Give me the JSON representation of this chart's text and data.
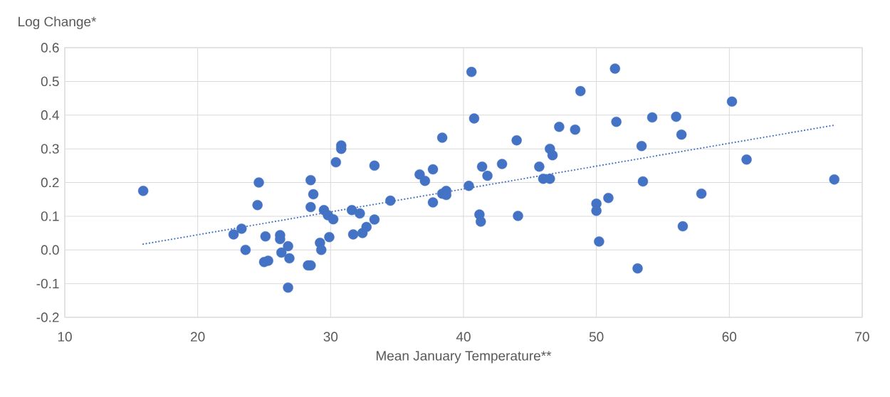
{
  "chart_data": {
    "type": "scatter",
    "xlabel": "Mean January Temperature**",
    "ylabel": "Log Change*",
    "xlim": [
      10,
      70
    ],
    "xticks": [
      10,
      20,
      30,
      40,
      50,
      60,
      70
    ],
    "ylim": [
      -0.2,
      0.6
    ],
    "yticks": [
      -0.2,
      -0.1,
      {
        "value": 0,
        "label": "0.0"
      },
      0.1,
      0.2,
      0.3,
      0.4,
      0.5,
      0.6
    ],
    "grid": true,
    "marker": "circle",
    "x": [
      15.9,
      22.7,
      23.3,
      23.6,
      24.6,
      24.5,
      25.1,
      25.0,
      25.3,
      26.2,
      26.2,
      26.3,
      26.8,
      26.9,
      26.8,
      28.3,
      28.5,
      28.5,
      28.5,
      28.7,
      29.2,
      29.3,
      29.5,
      29.8,
      30.2,
      29.9,
      30.4,
      30.8,
      30.8,
      31.6,
      32.2,
      31.7,
      32.4,
      32.7,
      33.3,
      33.3,
      34.5,
      36.7,
      37.1,
      37.7,
      37.7,
      38.4,
      38.4,
      38.7,
      38.7,
      40.4,
      40.6,
      40.8,
      41.2,
      41.3,
      41.4,
      41.8,
      42.9,
      44.0,
      44.1,
      45.7,
      46.0,
      46.5,
      46.5,
      46.7,
      47.2,
      48.4,
      48.8,
      50.0,
      50.0,
      50.2,
      50.9,
      51.4,
      51.5,
      53.1,
      53.4,
      53.5,
      54.2,
      56.0,
      56.4,
      56.5,
      57.9,
      60.2,
      61.3,
      67.9
    ],
    "series": [
      {
        "type": "scatter",
        "color": "#4472c4",
        "values": [
          0.175,
          0.046,
          0.063,
          0.0,
          0.2,
          0.133,
          0.04,
          -0.036,
          -0.032,
          0.044,
          0.032,
          -0.008,
          0.011,
          -0.025,
          -0.112,
          -0.046,
          -0.046,
          0.207,
          0.127,
          0.165,
          0.021,
          0.0,
          0.118,
          0.103,
          0.091,
          0.038,
          0.26,
          0.31,
          0.3,
          0.118,
          0.108,
          0.046,
          0.05,
          0.068,
          0.09,
          0.25,
          0.146,
          0.224,
          0.205,
          0.239,
          0.141,
          0.333,
          0.167,
          0.175,
          0.163,
          0.19,
          0.528,
          0.39,
          0.105,
          0.084,
          0.247,
          0.22,
          0.255,
          0.325,
          0.101,
          0.247,
          0.211,
          0.211,
          0.3,
          0.281,
          0.365,
          0.357,
          0.471,
          0.137,
          0.116,
          0.025,
          0.154,
          0.538,
          0.38,
          -0.055,
          0.308,
          0.203,
          0.393,
          0.395,
          0.342,
          0.07,
          0.167,
          0.44,
          0.268,
          0.209
        ]
      },
      {
        "type": "line",
        "color": "#4472c4",
        "x": [
          15.9,
          67.9
        ],
        "values": [
          0.017,
          0.37
        ],
        "line_style": "dotted",
        "marker": "none"
      }
    ]
  }
}
